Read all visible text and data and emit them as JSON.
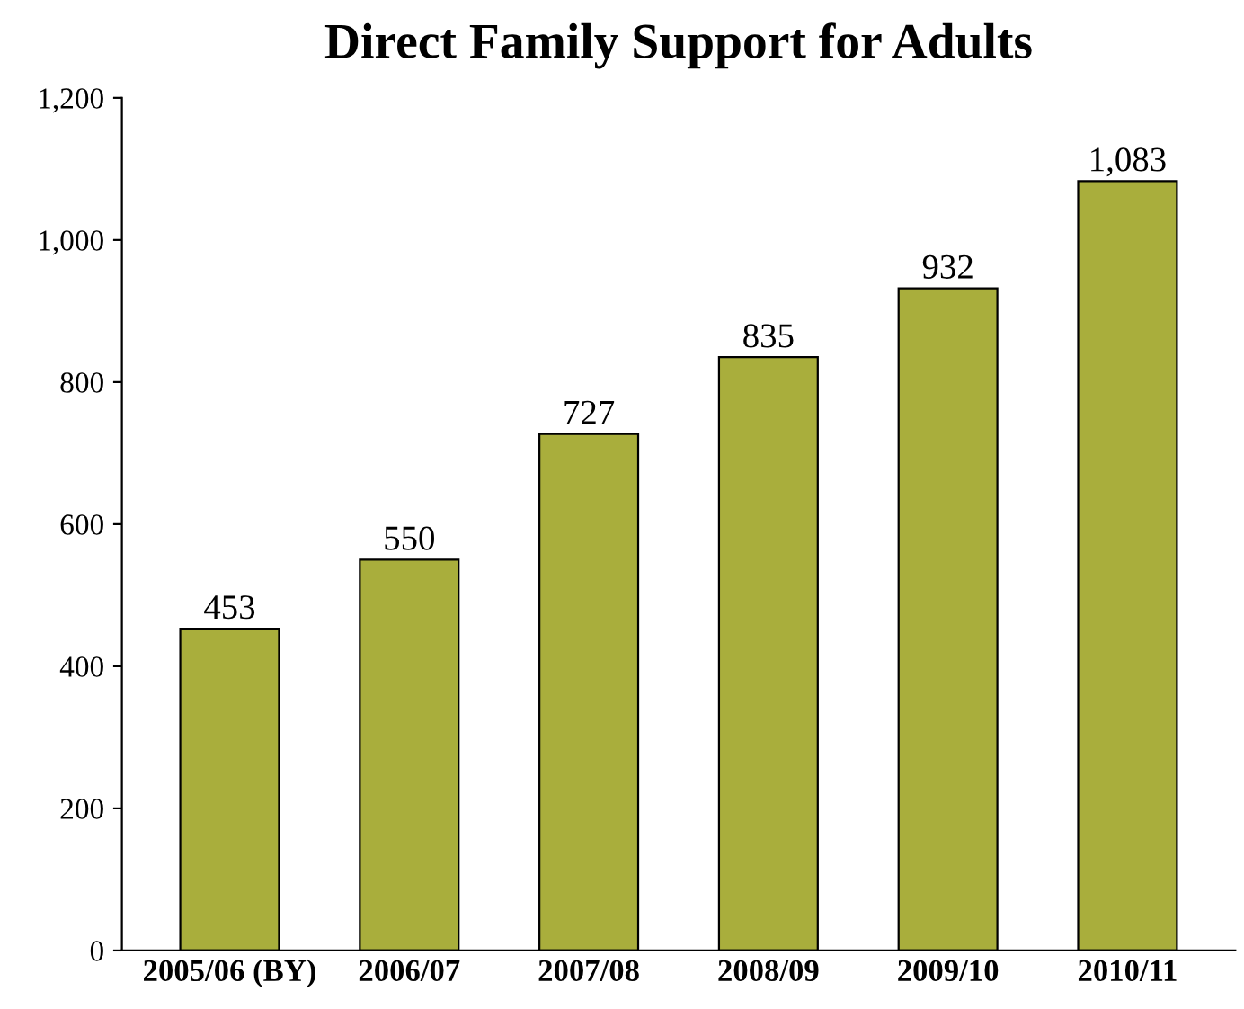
{
  "chart_data": {
    "type": "bar",
    "title": "Direct Family Support for Adults",
    "categories": [
      "2005/06 (BY)",
      "2006/07",
      "2007/08",
      "2008/09",
      "2009/10",
      "2010/11"
    ],
    "values": [
      453,
      550,
      727,
      835,
      932,
      1083
    ],
    "value_labels": [
      "453",
      "550",
      "727",
      "835",
      "932",
      "1,083"
    ],
    "color": "#a9ae3c",
    "ylim": [
      0,
      1200
    ],
    "yticks": [
      0,
      200,
      400,
      600,
      800,
      {
        "value": 1000,
        "label": "1,000"
      },
      {
        "value": 1200,
        "label": "1,200"
      }
    ],
    "grid": false
  }
}
